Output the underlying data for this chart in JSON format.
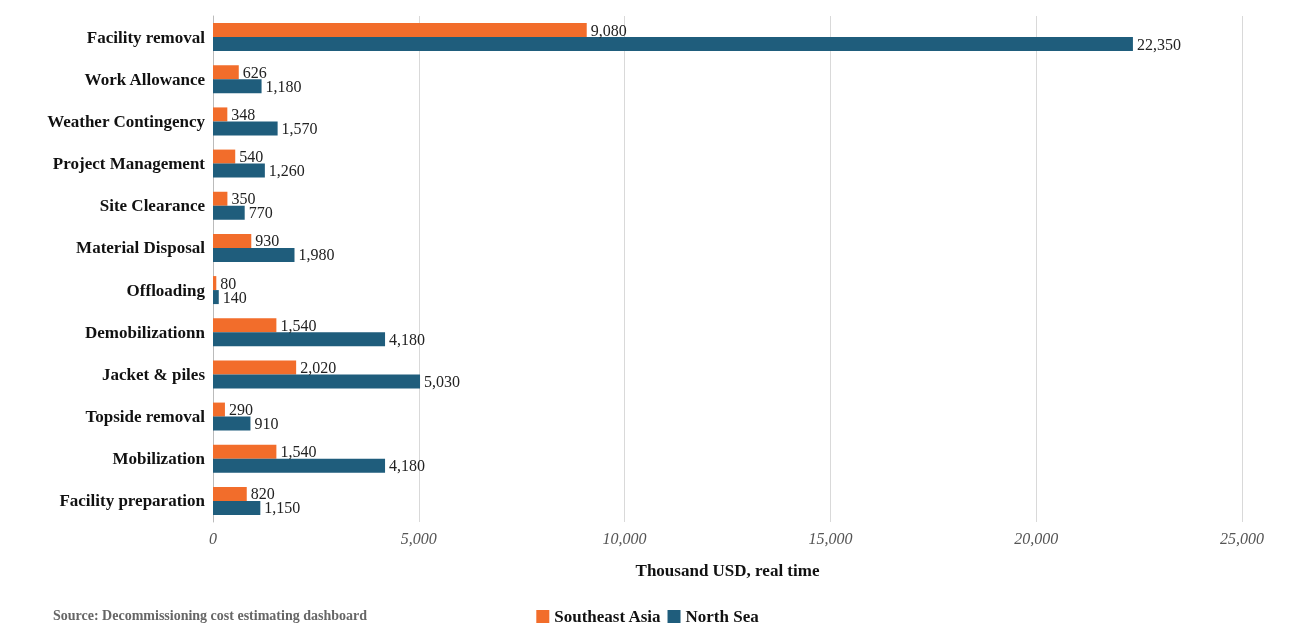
{
  "chart_data": {
    "type": "bar",
    "orientation": "horizontal",
    "xlabel": "Thousand USD, real time",
    "categories": [
      "Facility removal",
      "Work Allowance",
      "Weather Contingency",
      "Project Management",
      "Site Clearance",
      "Material Disposal",
      "Offloading",
      "Demobilizationn",
      "Jacket & piles",
      "Topside removal",
      "Mobilization",
      "Facility preparation"
    ],
    "series": [
      {
        "name": "Southeast Asia",
        "color": "#f26d2b",
        "values": [
          9080,
          626,
          348,
          540,
          350,
          930,
          80,
          1540,
          2020,
          290,
          1540,
          820
        ],
        "value_labels": [
          "9,080",
          "626",
          "348",
          "540",
          "350",
          "930",
          "80",
          "1,540",
          "2,020",
          "290",
          "1,540",
          "820"
        ]
      },
      {
        "name": "North Sea",
        "color": "#1f5d7c",
        "values": [
          22350,
          1180,
          1570,
          1260,
          770,
          1980,
          140,
          4180,
          5030,
          910,
          4180,
          1150
        ],
        "value_labels": [
          "22,350",
          "1,180",
          "1,570",
          "1,260",
          "770",
          "1,980",
          "140",
          "4,180",
          "5,030",
          "910",
          "4,180",
          "1,150"
        ]
      }
    ],
    "xlim": [
      0,
      25000
    ],
    "xticks": [
      0,
      {
        "value": 5000,
        "label": "5,000"
      },
      {
        "value": 10000,
        "label": "10,000"
      },
      {
        "value": 15000,
        "label": "15,000"
      },
      {
        "value": 20000,
        "label": "20,000"
      },
      {
        "value": 25000,
        "label": "25,000"
      }
    ],
    "grid": "x",
    "legend": "bottom",
    "annotations": [
      "Source: Decommissioning cost estimating dashboard"
    ]
  }
}
